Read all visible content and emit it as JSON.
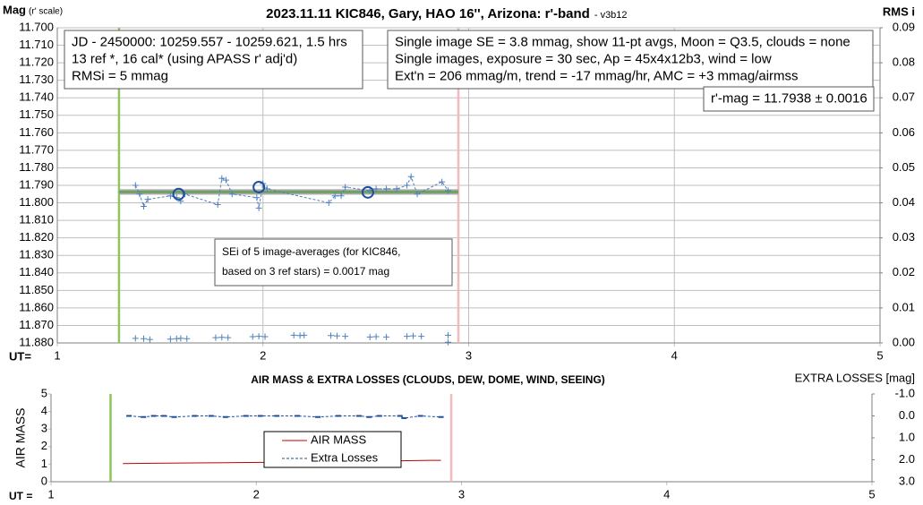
{
  "chart_data": [
    {
      "type": "line",
      "title": "2023.11.11 KIC846, Gary, HAO 16'', Arizona: r'-band",
      "subtitle": "- v3b12",
      "y_label": "Mag",
      "y_label_note": "(r' scale)",
      "y2_label": "RMS i",
      "x_label": "UT=",
      "annotations": [
        [
          "JD - 2450000: 10259.557 - 10259.621, 1.5 hrs",
          "13 ref *, 16 cal* (using APASS r' adj'd)",
          "RMSi = 5 mmag"
        ],
        [
          "Single image SE = 3.8 mmag, show  11-pt avgs, Moon = Q3.5, clouds = none",
          "Single images, exposure = 30 sec, Ap = 45x4x12b3, wind = low",
          "Ext'n = 206 mmag/m, trend = -17  mmag/hr, AMC = +3 mmag/airmss"
        ],
        [
          "r'-mag = 11.7938 ± 0.0016"
        ],
        [
          "SEi of 5 image-averages (for KIC846,",
          "based on 3 ref stars) = 0.0017 mag"
        ]
      ],
      "xlim": [
        1,
        5
      ],
      "xticks": [
        1,
        2,
        3,
        4,
        5
      ],
      "ylim": [
        11.7,
        11.88
      ],
      "y_reversed": true,
      "yticks": [
        {
          "value": 11.7,
          "label": "11.700"
        },
        {
          "value": 11.71,
          "label": "11.710"
        },
        {
          "value": 11.72,
          "label": "11.720"
        },
        {
          "value": 11.73,
          "label": "11.730"
        },
        {
          "value": 11.74,
          "label": "11.740"
        },
        {
          "value": 11.75,
          "label": "11.750"
        },
        {
          "value": 11.76,
          "label": "11.760"
        },
        {
          "value": 11.77,
          "label": "11.770"
        },
        {
          "value": 11.78,
          "label": "11.780"
        },
        {
          "value": 11.79,
          "label": "11.790"
        },
        {
          "value": 11.8,
          "label": "11.800"
        },
        {
          "value": 11.81,
          "label": "11.810"
        },
        {
          "value": 11.82,
          "label": "11.820"
        },
        {
          "value": 11.83,
          "label": "11.830"
        },
        {
          "value": 11.84,
          "label": "11.840"
        },
        {
          "value": 11.85,
          "label": "11.850"
        },
        {
          "value": 11.86,
          "label": "11.860"
        },
        {
          "value": 11.87,
          "label": "11.870"
        },
        {
          "value": 11.88,
          "label": "11.880"
        }
      ],
      "y2lim": [
        0,
        0.09
      ],
      "y2ticks": [
        {
          "value": 0,
          "label": "0.00"
        },
        0.01,
        0.02,
        0.03,
        0.04,
        0.05,
        0.06,
        0.07,
        0.08,
        0.09
      ],
      "grid": true,
      "vlines": [
        {
          "x": 1.3,
          "color": "#8dc65a"
        },
        {
          "x": 2.95,
          "color": "#f4b8bd"
        }
      ],
      "series": [
        {
          "color": "#a6a6a6",
          "width": 6,
          "marker": "none",
          "x": [
            1.3,
            2.95
          ],
          "values": [
            11.7938,
            11.7938
          ]
        },
        {
          "color": "#5aa34a",
          "width": 2,
          "marker": "none",
          "x": [
            1.3,
            2.95
          ],
          "values": [
            11.7938,
            11.7938
          ]
        },
        {
          "color": "#4f81bd",
          "width": 1,
          "dashed": true,
          "marker": "plus",
          "x": [
            1.38,
            1.4,
            1.42,
            1.44,
            1.55,
            1.58,
            1.6,
            1.62,
            1.78,
            1.8,
            1.82,
            1.85,
            1.97,
            1.98,
            2.0,
            2.02,
            2.32,
            2.35,
            2.38,
            2.4,
            2.52,
            2.55,
            2.6,
            2.65,
            2.7,
            2.72,
            2.75,
            2.87,
            2.9
          ],
          "values": [
            11.79,
            11.795,
            11.802,
            11.798,
            11.796,
            11.797,
            11.799,
            11.795,
            11.801,
            11.786,
            11.787,
            11.795,
            11.797,
            11.803,
            11.789,
            11.792,
            11.8,
            11.796,
            11.796,
            11.791,
            11.793,
            11.792,
            11.792,
            11.792,
            11.79,
            11.785,
            11.795,
            11.788,
            11.793
          ]
        },
        {
          "color": "#1f4e9c",
          "width": 0,
          "marker": "circle",
          "x": [
            1.59,
            1.98,
            2.51
          ],
          "values": [
            11.795,
            11.791,
            11.794
          ]
        },
        {
          "color": "#4f81bd",
          "width": 0,
          "marker": "plus",
          "axis": "y2",
          "x": [
            1.38,
            1.42,
            1.45,
            1.55,
            1.58,
            1.6,
            1.63,
            1.77,
            1.8,
            1.83,
            1.95,
            1.98,
            2.01,
            2.15,
            2.18,
            2.2,
            2.33,
            2.36,
            2.4,
            2.52,
            2.55,
            2.6,
            2.7,
            2.73,
            2.77,
            2.9,
            2.9
          ],
          "values": [
            0.0013,
            0.0012,
            0.001,
            0.0011,
            0.0012,
            0.0013,
            0.0012,
            0.0015,
            0.0016,
            0.0015,
            0.0018,
            0.0019,
            0.0018,
            0.0022,
            0.0021,
            0.0022,
            0.0021,
            0.002,
            0.0019,
            0.0017,
            0.0018,
            0.0017,
            0.0019,
            0.002,
            0.0019,
            0.0022,
            0.0002
          ]
        }
      ]
    },
    {
      "type": "line",
      "title": "AIR MASS & EXTRA LOSSES (CLOUDS, DEW, DOME, WIND, SEEING)",
      "y_label": "AIR MASS",
      "y2_label": "EXTRA LOSSES [mag]",
      "x_label": "UT =",
      "xlim": [
        1,
        5
      ],
      "xticks": [
        1,
        2,
        3,
        4,
        5
      ],
      "ylim": [
        0,
        5
      ],
      "yticks": [
        0,
        1,
        2,
        3,
        4,
        5
      ],
      "y2lim": [
        -1,
        3
      ],
      "y2_reversed": true,
      "y2ticks": [
        {
          "value": -1,
          "label": "-1.0"
        },
        {
          "value": 0,
          "label": "0.0"
        },
        {
          "value": 1,
          "label": "1.0"
        },
        {
          "value": 2,
          "label": "2.0"
        },
        {
          "value": 3,
          "label": "3.0"
        }
      ],
      "grid": false,
      "legend": "center",
      "vlines": [
        {
          "x": 1.29,
          "color": "#8dc65a"
        },
        {
          "x": 2.95,
          "color": "#f4b8bd"
        }
      ],
      "series": [
        {
          "name": "AIR MASS",
          "color": "#c00000",
          "width": 1,
          "marker": "none",
          "x": [
            1.35,
            1.5,
            1.7,
            1.9,
            2.1,
            2.3,
            2.5,
            2.7,
            2.85,
            2.9
          ],
          "values": [
            1.03,
            1.05,
            1.07,
            1.09,
            1.11,
            1.13,
            1.16,
            1.19,
            1.22,
            1.22
          ]
        },
        {
          "name": "Extra Losses",
          "color": "#1f4e9c",
          "width": 1,
          "dashed": true,
          "marker": "dash",
          "axis": "y2",
          "x": [
            1.38,
            1.45,
            1.5,
            1.55,
            1.6,
            1.7,
            1.78,
            1.85,
            1.95,
            2.02,
            2.1,
            2.2,
            2.3,
            2.4,
            2.5,
            2.55,
            2.6,
            2.7,
            2.72,
            2.8,
            2.9
          ],
          "values": [
            0.0,
            0.05,
            0.0,
            0.0,
            0.05,
            0.0,
            0.0,
            0.05,
            0.0,
            0.0,
            0.0,
            0.0,
            0.05,
            0.0,
            0.0,
            0.05,
            0.0,
            0.0,
            0.1,
            0.0,
            0.05
          ]
        }
      ]
    }
  ]
}
